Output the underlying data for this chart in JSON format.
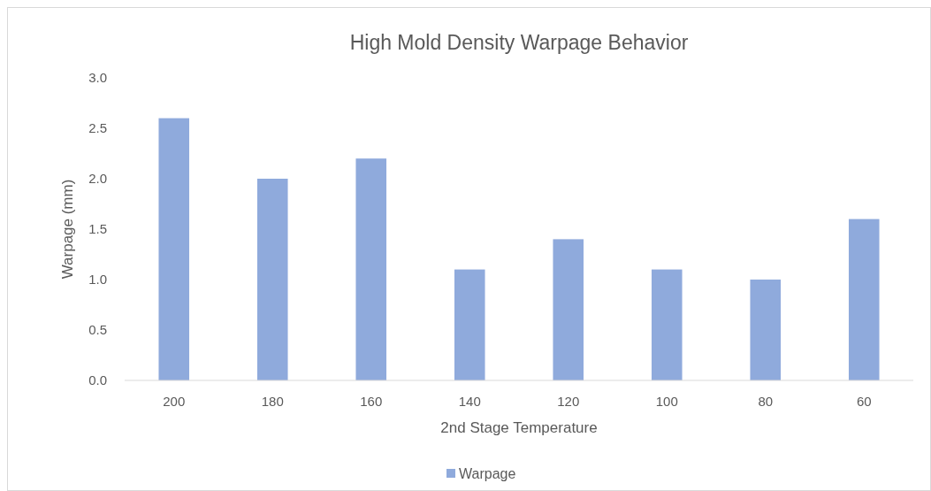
{
  "chart_data": {
    "type": "bar",
    "title": "High Mold Density Warpage Behavior",
    "xlabel": "2nd Stage Temperature",
    "ylabel": "Warpage (mm)",
    "categories": [
      "200",
      "180",
      "160",
      "140",
      "120",
      "100",
      "80",
      "60"
    ],
    "series": [
      {
        "name": "Warpage",
        "color": "#8faadc",
        "values": [
          2.6,
          2.0,
          2.2,
          1.1,
          1.4,
          1.1,
          1.0,
          1.6
        ]
      }
    ],
    "ylim": [
      0,
      3
    ],
    "yticks": [
      {
        "value": 0,
        "label": "0.0"
      },
      {
        "value": 0.5,
        "label": "0.5"
      },
      {
        "value": 1,
        "label": "1.0"
      },
      {
        "value": 1.5,
        "label": "1.5"
      },
      {
        "value": 2,
        "label": "2.0"
      },
      {
        "value": 2.5,
        "label": "2.5"
      },
      {
        "value": 3,
        "label": "3.0"
      }
    ],
    "grid": false,
    "legend": "bottom"
  }
}
